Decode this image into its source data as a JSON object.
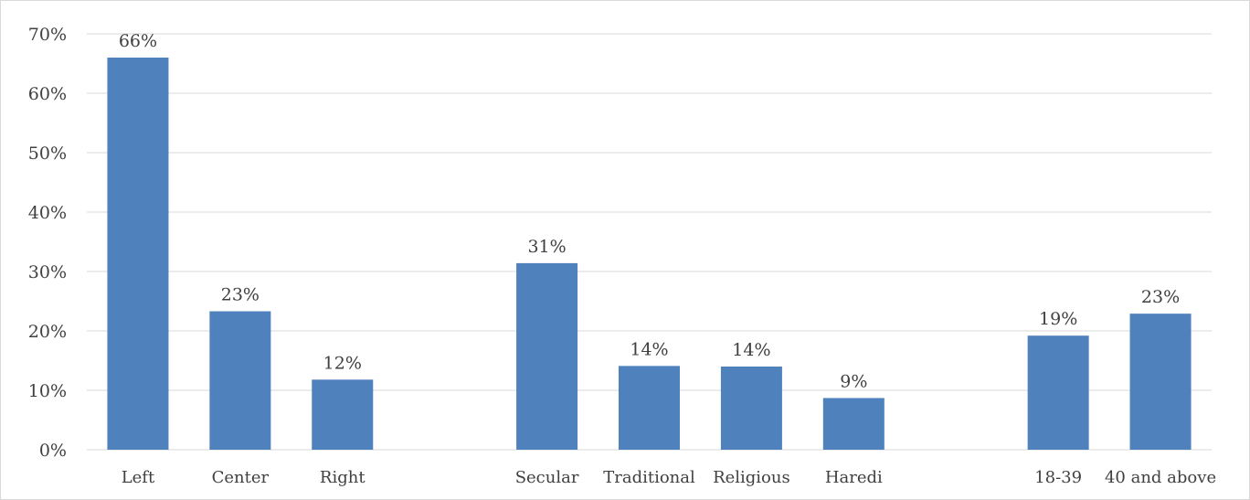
{
  "chart_data": {
    "type": "bar",
    "title": "",
    "xlabel": "",
    "ylabel": "",
    "ylim": [
      0,
      70
    ],
    "yticks": [
      0,
      10,
      20,
      30,
      40,
      50,
      60,
      70
    ],
    "ytick_labels": [
      "0%",
      "10%",
      "20%",
      "30%",
      "40%",
      "50%",
      "60%",
      "70%"
    ],
    "grid": true,
    "legend": "none",
    "bar_color": "#4f81bd",
    "categories": [
      "Left",
      "Center",
      "Right",
      "",
      "Secular",
      "Traditional",
      "Religious",
      "Haredi",
      "",
      "18-39",
      "40 and above"
    ],
    "values": [
      66,
      23.3,
      11.8,
      null,
      31.4,
      14.1,
      14,
      8.7,
      null,
      19.2,
      22.9
    ],
    "data_labels": [
      "66%",
      "23%",
      "12%",
      "",
      "31%",
      "14%",
      "14%",
      "9%",
      "",
      "19%",
      "23%"
    ]
  }
}
